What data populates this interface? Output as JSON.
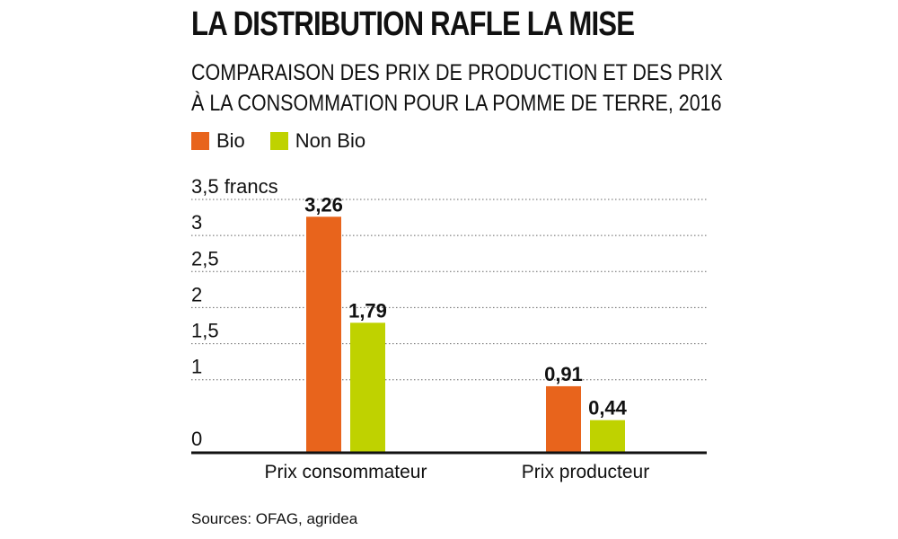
{
  "header": {
    "title": "LA DISTRIBUTION RAFLE LA MISE",
    "subtitle_line1": "COMPARAISON DES PRIX DE PRODUCTION ET DES PRIX",
    "subtitle_line2": "À LA CONSOMMATION POUR LA POMME DE TERRE, 2016"
  },
  "legend": {
    "items": [
      {
        "label": "Bio",
        "color": "#E8641C"
      },
      {
        "label": "Non Bio",
        "color": "#BFD200"
      }
    ]
  },
  "footer": {
    "source": "Sources: OFAG, agridea"
  },
  "chart_data": {
    "type": "bar",
    "title": "LA DISTRIBUTION RAFLE LA MISE",
    "categories": [
      "Prix consommateur",
      "Prix producteur"
    ],
    "series": [
      {
        "name": "Bio",
        "values": [
          3.26,
          0.91
        ],
        "labels": [
          "3,26",
          "0,91"
        ],
        "color": "#E8641C"
      },
      {
        "name": "Non Bio",
        "values": [
          1.79,
          0.44
        ],
        "labels": [
          "1,79",
          "0,44"
        ],
        "color": "#BFD200"
      }
    ],
    "ylim": [
      0,
      3.5
    ],
    "yticks": [
      {
        "value": 0,
        "label": "0"
      },
      {
        "value": 1,
        "label": "1"
      },
      {
        "value": 1.5,
        "label": "1,5"
      },
      {
        "value": 2,
        "label": "2"
      },
      {
        "value": 2.5,
        "label": "2,5"
      },
      {
        "value": 3,
        "label": "3"
      },
      {
        "value": 3.5,
        "label": "3,5 francs"
      }
    ],
    "gridlines": [
      1,
      1.5,
      2,
      2.5,
      3,
      3.5
    ],
    "xlabel": "",
    "ylabel": "francs"
  }
}
